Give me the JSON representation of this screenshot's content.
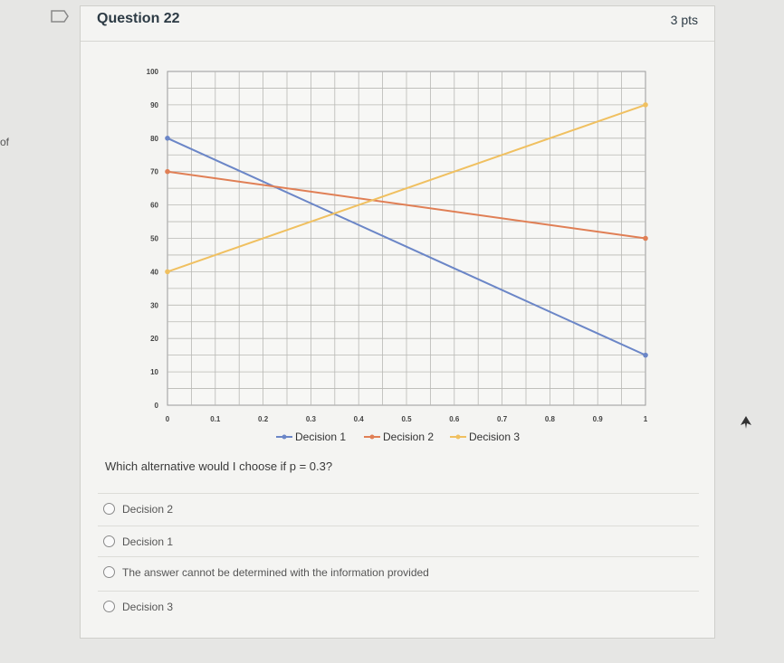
{
  "left_fragment": "of",
  "question": {
    "title": "Question 22",
    "points": "3 pts",
    "prompt": "Which alternative would I choose if p = 0.3?"
  },
  "answers": [
    {
      "label": "Decision 2"
    },
    {
      "label": "Decision 1"
    },
    {
      "label": "The answer cannot be determined with the information provided"
    },
    {
      "label": "Decision 3"
    }
  ],
  "colors": {
    "decision1": "#6b86c7",
    "decision2": "#e07f55",
    "decision3": "#f0c060"
  },
  "chart_data": {
    "type": "line",
    "x_ticks": [
      "0",
      "0.1",
      "0.2",
      "0.3",
      "0.4",
      "0.5",
      "0.6",
      "0.7",
      "0.8",
      "0.9",
      "1"
    ],
    "y_ticks": [
      "0",
      "10",
      "20",
      "30",
      "40",
      "50",
      "60",
      "70",
      "80",
      "90",
      "100"
    ],
    "xlim": [
      0,
      1
    ],
    "ylim": [
      0,
      100
    ],
    "grid": true,
    "legend_position": "bottom",
    "series": [
      {
        "name": "Decision 1",
        "x": [
          0,
          1
        ],
        "y": [
          80,
          15
        ]
      },
      {
        "name": "Decision 2",
        "x": [
          0,
          1
        ],
        "y": [
          70,
          50
        ]
      },
      {
        "name": "Decision 3",
        "x": [
          0,
          1
        ],
        "y": [
          40,
          90
        ]
      }
    ]
  }
}
